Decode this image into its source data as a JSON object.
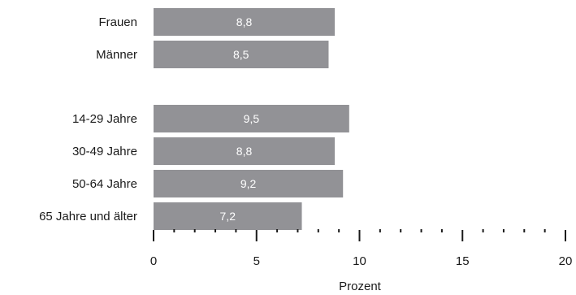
{
  "chart_data": {
    "type": "bar",
    "orientation": "horizontal",
    "categories": [
      "Frauen",
      "Männer",
      "14-29 Jahre",
      "30-49 Jahre",
      "50-64 Jahre",
      "65 Jahre und älter"
    ],
    "values": [
      8.8,
      8.5,
      9.5,
      8.8,
      9.2,
      7.2
    ],
    "value_labels": [
      "8,8",
      "8,5",
      "9,5",
      "8,8",
      "9,2",
      "7,2"
    ],
    "groups": [
      [
        "Frauen",
        "Männer"
      ],
      [
        "14-29 Jahre",
        "30-49 Jahre",
        "50-64 Jahre",
        "65 Jahre und älter"
      ]
    ],
    "xlabel": "Prozent",
    "xlim": [
      0,
      20
    ],
    "major_ticks": [
      0,
      5,
      10,
      15,
      20
    ],
    "major_tick_labels": [
      "0",
      "5",
      "10",
      "15",
      "20"
    ],
    "minor_tick_step": 1,
    "grid": false,
    "bar_color": "#929296",
    "bar_label_color": "#ffffff"
  }
}
